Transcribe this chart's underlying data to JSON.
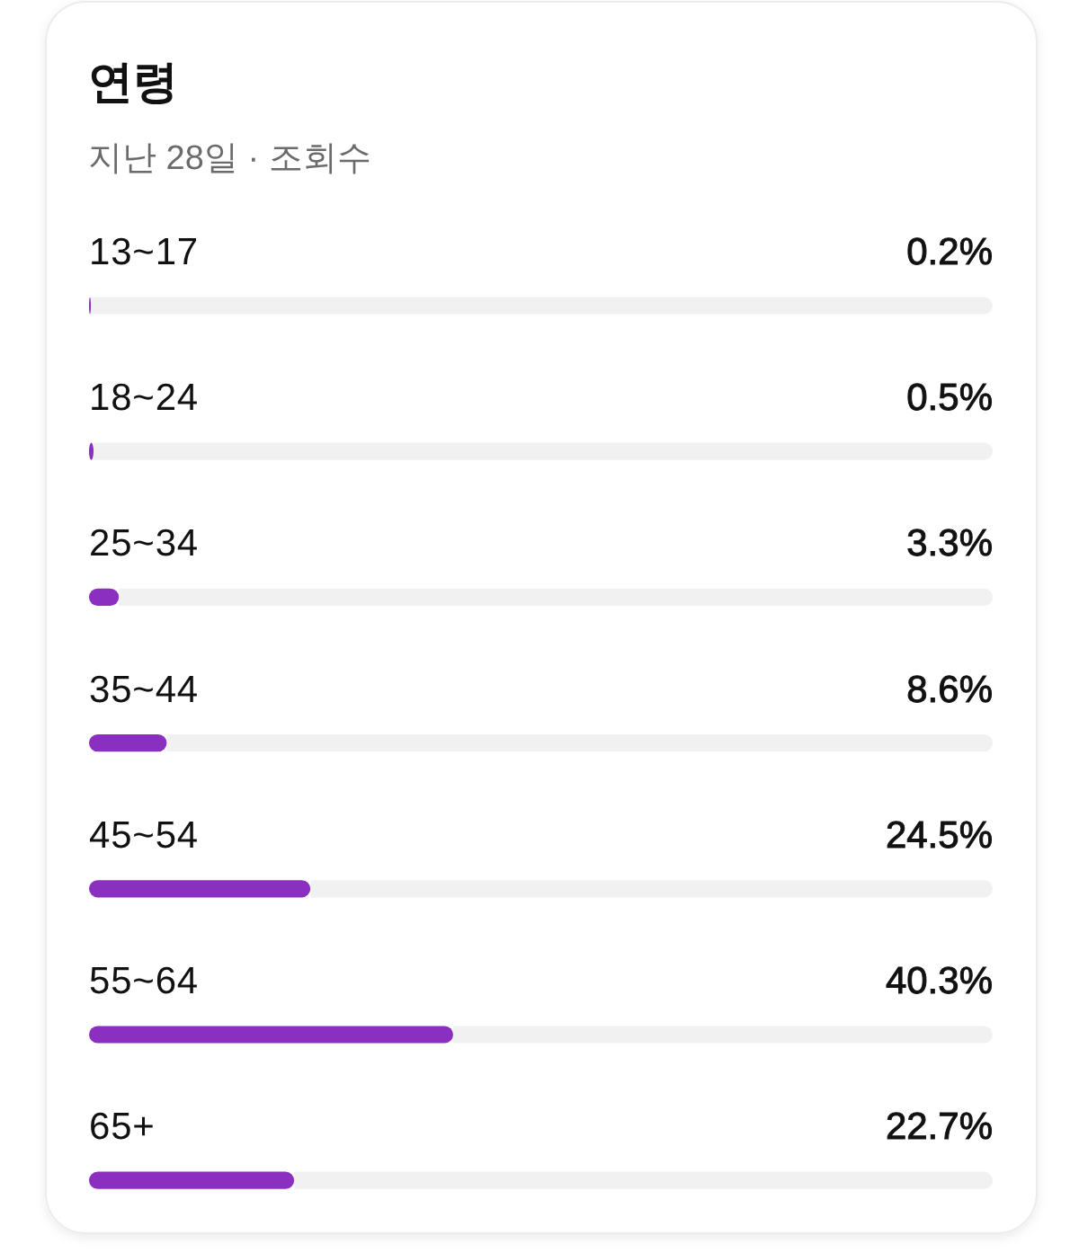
{
  "chart_data": {
    "type": "bar",
    "orientation": "horizontal",
    "title": "연령",
    "subtitle": "지난 28일 · 조회수",
    "categories": [
      "13~17",
      "18~24",
      "25~34",
      "35~44",
      "45~54",
      "55~64",
      "65+"
    ],
    "values": [
      0.2,
      0.5,
      3.3,
      8.6,
      24.5,
      40.3,
      22.7
    ],
    "value_labels": [
      "0.2%",
      "0.5%",
      "3.3%",
      "8.6%",
      "24.5%",
      "40.3%",
      "22.7%"
    ],
    "color": "#8b2fc0",
    "xlim": [
      0,
      100
    ],
    "tick_labels": "y"
  }
}
